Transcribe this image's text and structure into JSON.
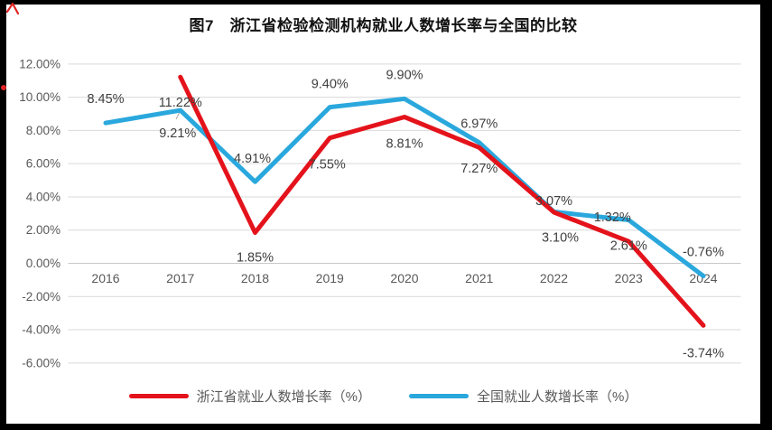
{
  "page": {
    "title": "图7　浙江省检验检测机构就业人数增长率与全国的比较"
  },
  "chart_data": {
    "type": "line",
    "title": "图7　浙江省检验检测机构就业人数增长率与全国的比较",
    "categories": [
      "2016",
      "2017",
      "2018",
      "2019",
      "2020",
      "2021",
      "2022",
      "2023",
      "2024"
    ],
    "xlabel": "",
    "ylabel": "",
    "ylim": [
      -6,
      12
    ],
    "y_tick_step": 2,
    "y_tick_labels": [
      "12.00%",
      "10.00%",
      "8.00%",
      "6.00%",
      "4.00%",
      "2.00%",
      "0.00%",
      "-2.00%",
      "-4.00%",
      "-6.00%"
    ],
    "grid": true,
    "legend_position": "bottom",
    "series": [
      {
        "name": "全国就业人数增长率（%）",
        "color": "#2aa8dd",
        "values": [
          8.45,
          9.21,
          4.91,
          9.4,
          9.9,
          7.27,
          3.1,
          2.61,
          -0.76
        ],
        "labels": [
          "8.45%",
          "9.21%",
          "4.91%",
          "9.40%",
          "9.90%",
          "7.27%",
          "3.10%",
          "2.61%",
          "-0.76%"
        ],
        "label_offsets": [
          [
            0,
            -22
          ],
          [
            -3,
            22
          ],
          [
            -3,
            -21
          ],
          [
            0,
            -21
          ],
          [
            0,
            -22
          ],
          [
            0,
            25
          ],
          [
            7,
            25
          ],
          [
            0,
            25
          ],
          [
            0,
            -22
          ]
        ]
      },
      {
        "name": "浙江省就业人数增长率（%）",
        "color": "#e4131b",
        "values": [
          null,
          11.22,
          1.85,
          7.55,
          8.81,
          6.97,
          3.07,
          1.32,
          -3.74
        ],
        "labels": [
          "",
          "11.22%",
          "1.85%",
          "7.55%",
          "8.81%",
          "6.97%",
          "3.07%",
          "1.32%",
          "-3.74%"
        ],
        "label_offsets": [
          [
            0,
            0
          ],
          [
            0,
            25
          ],
          [
            0,
            24
          ],
          [
            -3,
            26
          ],
          [
            0,
            26
          ],
          [
            0,
            -22
          ],
          [
            0,
            -8
          ],
          [
            -18,
            -22
          ],
          [
            0,
            27
          ]
        ]
      }
    ]
  },
  "annotations": {
    "pen_mark_color": "#e02424"
  }
}
